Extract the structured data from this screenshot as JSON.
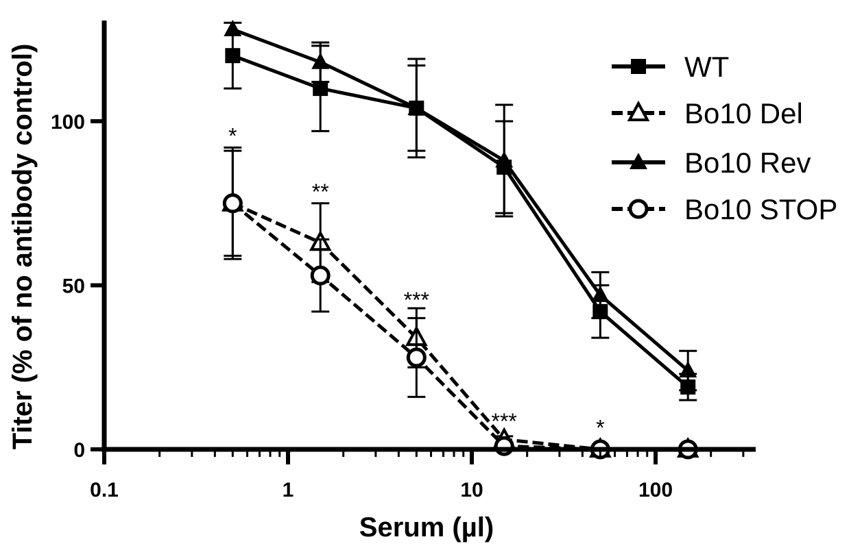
{
  "chart_data": {
    "type": "line",
    "title": "",
    "xlabel": "Serum (µl)",
    "ylabel": "Titer (% of no antibody control)",
    "x_scale": "log",
    "xlim": [
      0.1,
      300
    ],
    "ylim": [
      0,
      130
    ],
    "x_ticks": [
      0.1,
      1,
      10,
      100
    ],
    "x_tick_labels": [
      "0.1",
      "1",
      "10",
      "100"
    ],
    "y_ticks": [
      0,
      50,
      100
    ],
    "y_tick_labels": [
      "0",
      "50",
      "100"
    ],
    "grid": false,
    "legend_position": "top-right",
    "x": [
      0.5,
      1.5,
      5,
      15,
      50,
      150
    ],
    "series": [
      {
        "name": "WT",
        "marker": "filled-square",
        "line_style": "solid",
        "values": [
          120,
          110,
          104,
          86,
          42,
          19
        ],
        "errors": [
          10,
          13,
          13,
          14,
          8,
          4
        ]
      },
      {
        "name": "Bo10 Del",
        "marker": "open-triangle",
        "line_style": "dashed",
        "values": [
          75,
          63,
          34,
          3,
          0,
          0
        ],
        "errors": [
          17,
          12,
          9,
          1,
          0,
          0
        ]
      },
      {
        "name": "Bo10 Rev",
        "marker": "filled-triangle",
        "line_style": "solid",
        "values": [
          128,
          118,
          104,
          88,
          47,
          24
        ],
        "errors": [
          0,
          6,
          15,
          17,
          7,
          6
        ]
      },
      {
        "name": "Bo10 STOP",
        "marker": "open-circle",
        "line_style": "dashed",
        "values": [
          75,
          53,
          28,
          1,
          0,
          0
        ],
        "errors": [
          16,
          11,
          12,
          1,
          0,
          0
        ]
      }
    ],
    "annotations": [
      {
        "x": 0.5,
        "y": 92,
        "text": "*"
      },
      {
        "x": 1.5,
        "y": 75,
        "text": "**"
      },
      {
        "x": 5,
        "y": 42,
        "text": "***"
      },
      {
        "x": 15,
        "y": 5,
        "text": "***"
      },
      {
        "x": 50,
        "y": 3,
        "text": "*"
      }
    ]
  }
}
